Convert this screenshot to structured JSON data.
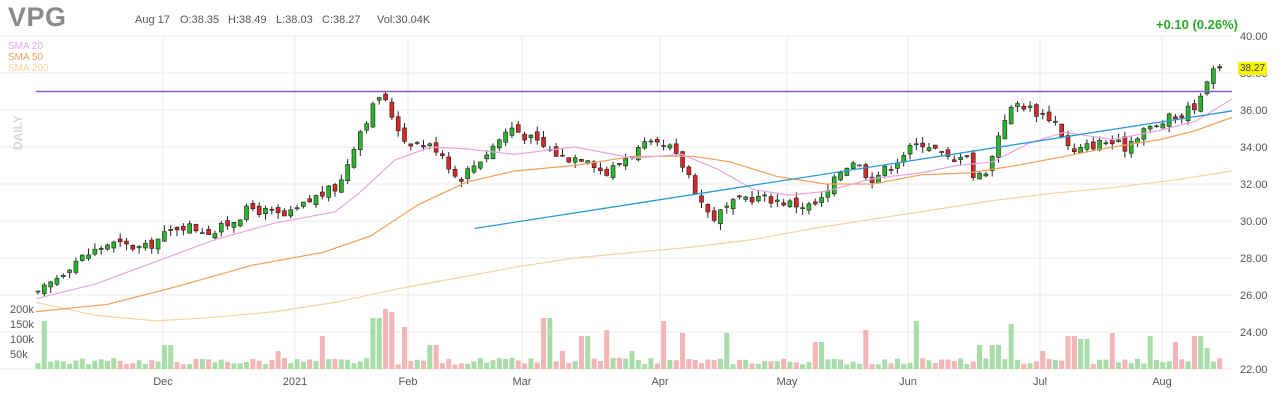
{
  "header": {
    "ticker": "VPG",
    "date": "Aug 17",
    "open": "O:38.35",
    "high": "H:38.49",
    "low": "L:38.03",
    "close": "C:38.27",
    "volume": "Vol:30.04K",
    "change": "+0.10 (0.26%)"
  },
  "period_label": "DAILY",
  "legend": [
    {
      "label": "SMA 20",
      "color": "#e8a6e0"
    },
    {
      "label": "SMA 50",
      "color": "#f0a05a"
    },
    {
      "label": "SMA 200",
      "color": "#f5d3a0"
    }
  ],
  "colors": {
    "up": "#2ab52a",
    "down": "#d62828",
    "vol_up": "#a8dca8",
    "vol_down": "#f3b5b5",
    "grid": "#ebebeb"
  },
  "last_price": "38.27",
  "chart_data": {
    "type": "candlestick",
    "ylim": [
      22,
      40
    ],
    "yticks": [
      "40.00",
      "38.00",
      "36.00",
      "34.00",
      "32.00",
      "30.00",
      "28.00",
      "26.00",
      "24.00",
      "22.00"
    ],
    "volume_ticks": [
      "200k",
      "150k",
      "100k",
      "50k"
    ],
    "xticks": [
      "Dec",
      "2021",
      "Feb",
      "Mar",
      "Apr",
      "May",
      "Jun",
      "Jul",
      "Aug"
    ],
    "horizontal_line": 37.0,
    "trendline": [
      [
        0.367,
        29.6
      ],
      [
        1.0,
        35.95
      ]
    ],
    "key_closes": [
      [
        0.0,
        26.0
      ],
      [
        0.03,
        27.8
      ],
      [
        0.06,
        28.8
      ],
      [
        0.09,
        28.5
      ],
      [
        0.12,
        29.8
      ],
      [
        0.15,
        29.4
      ],
      [
        0.18,
        30.7
      ],
      [
        0.21,
        30.2
      ],
      [
        0.235,
        31.3
      ],
      [
        0.255,
        31.9
      ],
      [
        0.27,
        34.6
      ],
      [
        0.29,
        36.9
      ],
      [
        0.31,
        34.4
      ],
      [
        0.34,
        33.9
      ],
      [
        0.355,
        32.2
      ],
      [
        0.38,
        33.7
      ],
      [
        0.4,
        35.1
      ],
      [
        0.42,
        34.3
      ],
      [
        0.445,
        33.4
      ],
      [
        0.465,
        33.5
      ],
      [
        0.48,
        32.5
      ],
      [
        0.5,
        33.6
      ],
      [
        0.515,
        34.1
      ],
      [
        0.535,
        33.9
      ],
      [
        0.55,
        32.6
      ],
      [
        0.56,
        31.2
      ],
      [
        0.57,
        30.1
      ],
      [
        0.585,
        30.8
      ],
      [
        0.6,
        31.3
      ],
      [
        0.62,
        31.2
      ],
      [
        0.64,
        30.9
      ],
      [
        0.655,
        30.8
      ],
      [
        0.665,
        31.2
      ],
      [
        0.68,
        32.8
      ],
      [
        0.69,
        33.3
      ],
      [
        0.705,
        32.3
      ],
      [
        0.72,
        32.9
      ],
      [
        0.735,
        33.8
      ],
      [
        0.75,
        34.3
      ],
      [
        0.765,
        33.6
      ],
      [
        0.775,
        33.1
      ],
      [
        0.785,
        34.1
      ],
      [
        0.79,
        32.4
      ],
      [
        0.8,
        32.5
      ],
      [
        0.81,
        33.8
      ],
      [
        0.815,
        35.4
      ],
      [
        0.825,
        36.1
      ],
      [
        0.83,
        36.4
      ],
      [
        0.845,
        35.9
      ],
      [
        0.86,
        35.5
      ],
      [
        0.875,
        33.6
      ],
      [
        0.89,
        34.1
      ],
      [
        0.905,
        34.3
      ],
      [
        0.92,
        34.0
      ],
      [
        0.935,
        35.0
      ],
      [
        0.945,
        35.0
      ],
      [
        0.955,
        35.5
      ],
      [
        0.965,
        35.6
      ],
      [
        0.975,
        36.1
      ],
      [
        0.985,
        36.6
      ],
      [
        0.992,
        38.5
      ],
      [
        1.0,
        38.27
      ]
    ],
    "sma20": [
      [
        0.0,
        25.8
      ],
      [
        0.05,
        26.6
      ],
      [
        0.1,
        27.8
      ],
      [
        0.15,
        29.0
      ],
      [
        0.2,
        29.9
      ],
      [
        0.25,
        30.5
      ],
      [
        0.27,
        31.5
      ],
      [
        0.3,
        33.3
      ],
      [
        0.33,
        34.0
      ],
      [
        0.36,
        33.9
      ],
      [
        0.4,
        33.6
      ],
      [
        0.45,
        34.0
      ],
      [
        0.5,
        33.4
      ],
      [
        0.54,
        33.6
      ],
      [
        0.57,
        32.8
      ],
      [
        0.6,
        31.7
      ],
      [
        0.63,
        31.4
      ],
      [
        0.66,
        31.6
      ],
      [
        0.7,
        32.3
      ],
      [
        0.74,
        32.6
      ],
      [
        0.77,
        33.0
      ],
      [
        0.8,
        33.2
      ],
      [
        0.83,
        34.2
      ],
      [
        0.86,
        34.8
      ],
      [
        0.9,
        34.4
      ],
      [
        0.94,
        34.9
      ],
      [
        0.97,
        35.4
      ],
      [
        1.0,
        36.6
      ]
    ],
    "sma50": [
      [
        0.0,
        25.1
      ],
      [
        0.06,
        25.5
      ],
      [
        0.12,
        26.5
      ],
      [
        0.18,
        27.6
      ],
      [
        0.24,
        28.3
      ],
      [
        0.28,
        29.2
      ],
      [
        0.32,
        30.9
      ],
      [
        0.36,
        32.1
      ],
      [
        0.4,
        32.7
      ],
      [
        0.45,
        33.0
      ],
      [
        0.5,
        33.5
      ],
      [
        0.55,
        33.5
      ],
      [
        0.58,
        33.2
      ],
      [
        0.62,
        32.4
      ],
      [
        0.66,
        32.0
      ],
      [
        0.7,
        32.0
      ],
      [
        0.74,
        32.5
      ],
      [
        0.78,
        32.6
      ],
      [
        0.82,
        33.0
      ],
      [
        0.86,
        33.5
      ],
      [
        0.9,
        34.0
      ],
      [
        0.94,
        34.4
      ],
      [
        0.97,
        34.9
      ],
      [
        1.0,
        35.6
      ]
    ],
    "sma200": [
      [
        0.0,
        25.6
      ],
      [
        0.05,
        24.9
      ],
      [
        0.1,
        24.6
      ],
      [
        0.15,
        24.8
      ],
      [
        0.2,
        25.1
      ],
      [
        0.25,
        25.6
      ],
      [
        0.3,
        26.3
      ],
      [
        0.35,
        26.9
      ],
      [
        0.4,
        27.5
      ],
      [
        0.45,
        28.0
      ],
      [
        0.5,
        28.3
      ],
      [
        0.55,
        28.6
      ],
      [
        0.6,
        29.0
      ],
      [
        0.65,
        29.6
      ],
      [
        0.7,
        30.1
      ],
      [
        0.75,
        30.6
      ],
      [
        0.8,
        31.1
      ],
      [
        0.85,
        31.5
      ],
      [
        0.9,
        31.8
      ],
      [
        0.95,
        32.2
      ],
      [
        1.0,
        32.7
      ]
    ],
    "volume_spikes": [
      [
        0.005,
        160000
      ],
      [
        0.11,
        80000
      ],
      [
        0.205,
        60000
      ],
      [
        0.24,
        110000
      ],
      [
        0.283,
        200000
      ],
      [
        0.286,
        170000
      ],
      [
        0.293,
        200000
      ],
      [
        0.298,
        190000
      ],
      [
        0.31,
        140000
      ],
      [
        0.335,
        80000
      ],
      [
        0.43,
        170000
      ],
      [
        0.445,
        60000
      ],
      [
        0.462,
        110000
      ],
      [
        0.482,
        130000
      ],
      [
        0.502,
        60000
      ],
      [
        0.53,
        160000
      ],
      [
        0.545,
        120000
      ],
      [
        0.582,
        120000
      ],
      [
        0.66,
        90000
      ],
      [
        0.7,
        130000
      ],
      [
        0.745,
        160000
      ],
      [
        0.795,
        80000
      ],
      [
        0.81,
        80000
      ],
      [
        0.825,
        150000
      ],
      [
        0.85,
        60000
      ],
      [
        0.875,
        110000
      ],
      [
        0.885,
        100000
      ],
      [
        0.91,
        120000
      ],
      [
        0.94,
        110000
      ],
      [
        0.962,
        90000
      ],
      [
        0.982,
        110000
      ],
      [
        0.99,
        70000
      ]
    ],
    "seed": 17
  }
}
